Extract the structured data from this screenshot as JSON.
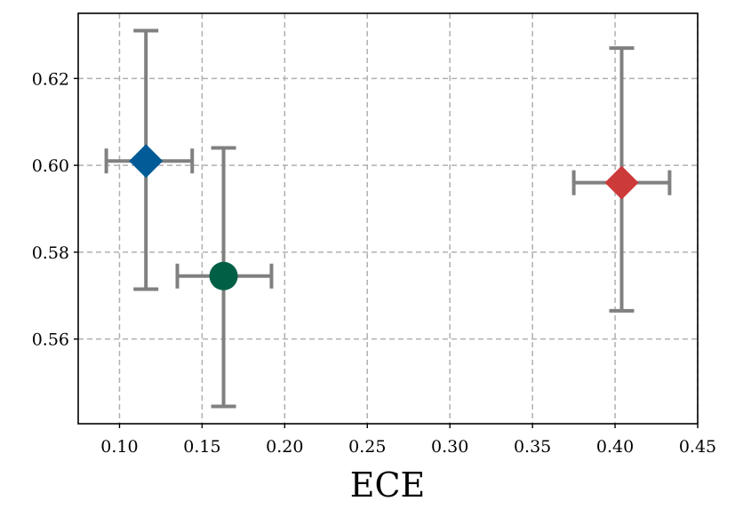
{
  "chart_data": {
    "type": "scatter",
    "title": "",
    "xlabel": "ECE",
    "ylabel": "",
    "xlim": [
      0.075,
      0.45
    ],
    "ylim": [
      0.5405,
      0.635
    ],
    "grid": true,
    "error_bar_color": "#808080",
    "xticks": [
      0.1,
      0.15,
      0.2,
      0.25,
      0.3,
      0.35,
      0.4,
      0.45
    ],
    "xtick_labels": [
      "0.10",
      "0.15",
      "0.20",
      "0.25",
      "0.30",
      "0.35",
      "0.40",
      "0.45"
    ],
    "yticks": [
      0.56,
      0.58,
      0.6,
      0.62
    ],
    "ytick_labels": [
      "0.56",
      "0.58",
      "0.60",
      "0.62"
    ],
    "points": [
      {
        "name": "blue-diamond",
        "marker": "diamond",
        "color": "#005b96",
        "x": 0.116,
        "y": 0.601,
        "xerr": [
          0.092,
          0.144
        ],
        "yerr": [
          0.5715,
          0.631
        ]
      },
      {
        "name": "green-circle",
        "marker": "circle",
        "color": "#005f45",
        "x": 0.163,
        "y": 0.5745,
        "xerr": [
          0.135,
          0.192
        ],
        "yerr": [
          0.5445,
          0.604
        ]
      },
      {
        "name": "red-diamond",
        "marker": "diamond",
        "color": "#cc3a3a",
        "x": 0.404,
        "y": 0.596,
        "xerr": [
          0.375,
          0.433
        ],
        "yerr": [
          0.5665,
          0.627
        ]
      }
    ]
  }
}
